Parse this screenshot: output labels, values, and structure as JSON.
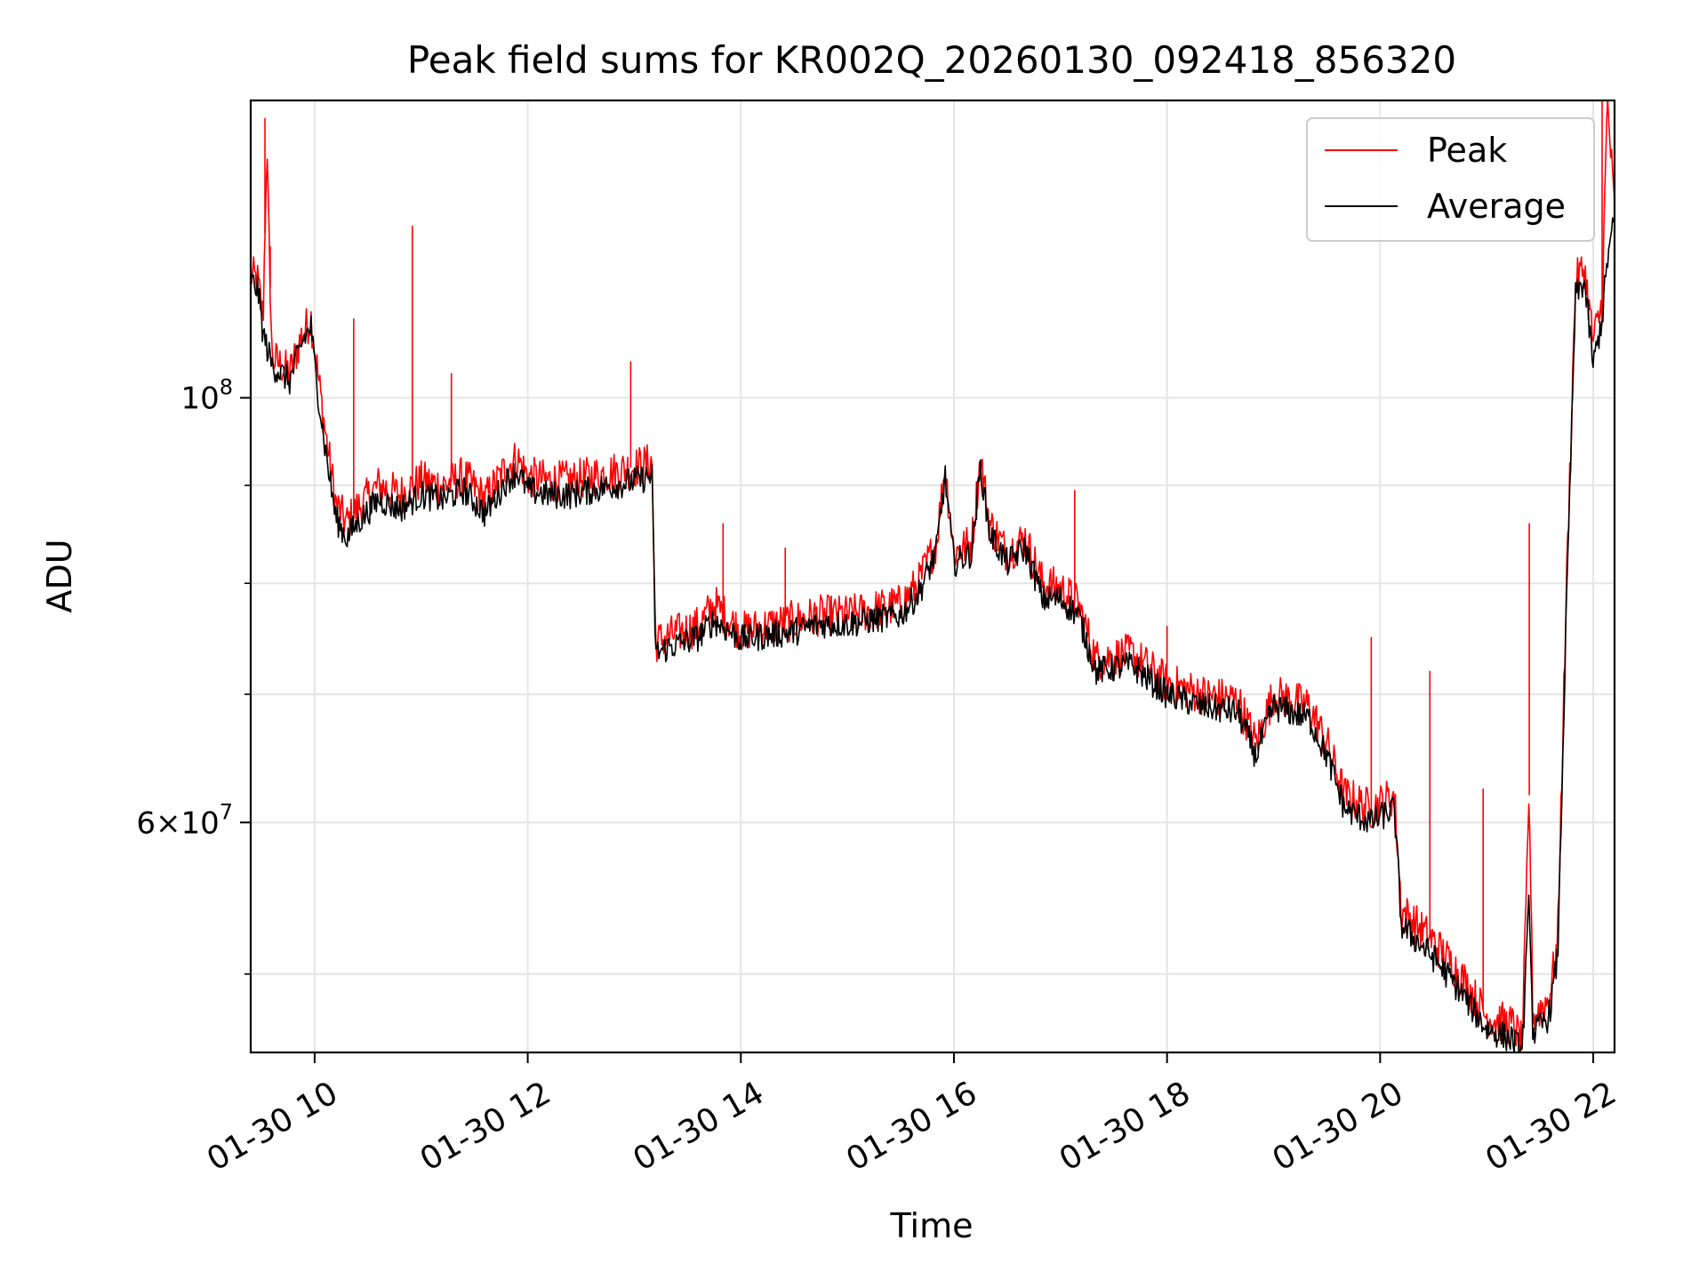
{
  "chart_data": {
    "type": "line",
    "title": "Peak field sums for KR002Q_20260130_092418_856320",
    "xlabel": "Time",
    "ylabel": "ADU",
    "x_unit": "time of day on 01-30 (hours)",
    "xlim": [
      "01-30 09:24",
      "01-30 22:12"
    ],
    "x_ticks": [
      10,
      12,
      14,
      16,
      18,
      20,
      22
    ],
    "x_tick_labels": [
      "01-30 10",
      "01-30 12",
      "01-30 14",
      "01-30 16",
      "01-30 18",
      "01-30 20",
      "01-30 22"
    ],
    "y_scale": "log",
    "ylim": [
      45500000,
      143000000
    ],
    "y_major_ticks": [
      60000000,
      100000000
    ],
    "y_major_tick_labels": [
      {
        "base": "6",
        "mult": "×",
        "pow": "10",
        "exp": "7"
      },
      {
        "base": "",
        "mult": "",
        "pow": "10",
        "exp": "8"
      }
    ],
    "y_minor_ticks": [
      50000000,
      70000000,
      80000000,
      90000000
    ],
    "grid": true,
    "legend_position": "upper right",
    "colors": {
      "peak": "#ff0000",
      "average": "#000000",
      "grid": "#e5e5e5"
    },
    "series": [
      {
        "name": "Peak",
        "x_start": "01-30 09:24",
        "x_end": "01-30 22:12",
        "points": [
          [
            "01-30 09:24",
            116000000
          ],
          [
            "01-30 09:28",
            115000000
          ],
          [
            "01-30 09:31",
            110000000
          ],
          [
            "01-30 09:33",
            135000000
          ],
          [
            "01-30 09:36",
            105000000
          ],
          [
            "01-30 09:41",
            104000000
          ],
          [
            "01-30 09:46",
            103000000
          ],
          [
            "01-30 09:53",
            108000000
          ],
          [
            "01-30 09:58",
            110000000
          ],
          [
            "01-30 10:00",
            106000000
          ],
          [
            "01-30 10:06",
            96000000
          ],
          [
            "01-30 10:12",
            88000000
          ],
          [
            "01-30 10:18",
            86000000
          ],
          [
            "01-30 10:24",
            87500000
          ],
          [
            "01-30 10:36",
            90000000
          ],
          [
            "01-30 10:48",
            89000000
          ],
          [
            "01-30 11:00",
            90500000
          ],
          [
            "01-30 11:12",
            90000000
          ],
          [
            "01-30 11:24",
            91000000
          ],
          [
            "01-30 11:36",
            88500000
          ],
          [
            "01-30 11:48",
            92000000
          ],
          [
            "01-30 11:54",
            93000000
          ],
          [
            "01-30 12:00",
            91000000
          ],
          [
            "01-30 12:12",
            90500000
          ],
          [
            "01-30 12:24",
            90500000
          ],
          [
            "01-30 12:36",
            91000000
          ],
          [
            "01-30 12:48",
            91500000
          ],
          [
            "01-30 13:00",
            92000000
          ],
          [
            "01-30 13:10",
            92500000
          ],
          [
            "01-30 13:12",
            74500000
          ],
          [
            "01-30 13:18",
            75000000
          ],
          [
            "01-30 13:36",
            76000000
          ],
          [
            "01-30 13:45",
            78000000
          ],
          [
            "01-30 14:00",
            75500000
          ],
          [
            "01-30 14:30",
            76500000
          ],
          [
            "01-30 14:45",
            77000000
          ],
          [
            "01-30 15:00",
            77000000
          ],
          [
            "01-30 15:30",
            78000000
          ],
          [
            "01-30 15:40",
            80000000
          ],
          [
            "01-30 15:50",
            84000000
          ],
          [
            "01-30 15:55",
            92000000
          ],
          [
            "01-30 16:00",
            83000000
          ],
          [
            "01-30 16:10",
            84000000
          ],
          [
            "01-30 16:15",
            93000000
          ],
          [
            "01-30 16:20",
            86000000
          ],
          [
            "01-30 16:30",
            83000000
          ],
          [
            "01-30 16:40",
            84500000
          ],
          [
            "01-30 16:50",
            80000000
          ],
          [
            "01-30 17:00",
            79500000
          ],
          [
            "01-30 17:10",
            78000000
          ],
          [
            "01-30 17:20",
            73000000
          ],
          [
            "01-30 17:40",
            73500000
          ],
          [
            "01-30 18:00",
            71000000
          ],
          [
            "01-30 18:20",
            70000000
          ],
          [
            "01-30 18:40",
            69500000
          ],
          [
            "01-30 18:50",
            66000000
          ],
          [
            "01-30 19:00",
            70000000
          ],
          [
            "01-30 19:20",
            69000000
          ],
          [
            "01-30 19:30",
            66000000
          ],
          [
            "01-30 19:40",
            62000000
          ],
          [
            "01-30 19:55",
            61000000
          ],
          [
            "01-30 20:08",
            62000000
          ],
          [
            "01-30 20:12",
            54000000
          ],
          [
            "01-30 20:30",
            52000000
          ],
          [
            "01-30 20:45",
            50000000
          ],
          [
            "01-30 21:00",
            47500000
          ],
          [
            "01-30 21:15",
            47000000
          ],
          [
            "01-30 21:20",
            46000000
          ],
          [
            "01-30 21:24",
            62000000
          ],
          [
            "01-30 21:26",
            47500000
          ],
          [
            "01-30 21:35",
            48500000
          ],
          [
            "01-30 21:40",
            52000000
          ],
          [
            "01-30 21:45",
            80000000
          ],
          [
            "01-30 21:50",
            115000000
          ],
          [
            "01-30 21:55",
            117000000
          ],
          [
            "01-30 22:00",
            107000000
          ],
          [
            "01-30 22:05",
            112000000
          ],
          [
            "01-30 22:08",
            143000000
          ],
          [
            "01-30 22:12",
            125000000
          ]
        ],
        "spikes": [
          [
            "01-30 09:32",
            140000000
          ],
          [
            "01-30 09:35",
            120000000
          ],
          [
            "01-30 10:22",
            110000000
          ],
          [
            "01-30 10:55",
            123000000
          ],
          [
            "01-30 11:17",
            103000000
          ],
          [
            "01-30 12:58",
            104500000
          ],
          [
            "01-30 13:50",
            86000000
          ],
          [
            "01-30 14:25",
            83500000
          ],
          [
            "01-30 17:08",
            89500000
          ],
          [
            "01-30 18:00",
            76000000
          ],
          [
            "01-30 19:55",
            75000000
          ],
          [
            "01-30 20:28",
            72000000
          ],
          [
            "01-30 20:58",
            62500000
          ],
          [
            "01-30 21:24",
            86000000
          ],
          [
            "01-30 22:05",
            143000000
          ]
        ]
      },
      {
        "name": "Average",
        "x_start": "01-30 09:24",
        "x_end": "01-30 22:12",
        "points": [
          [
            "01-30 09:24",
            115000000
          ],
          [
            "01-30 09:28",
            114000000
          ],
          [
            "01-30 09:31",
            108000000
          ],
          [
            "01-30 09:36",
            104000000
          ],
          [
            "01-30 09:41",
            103000000
          ],
          [
            "01-30 09:46",
            102000000
          ],
          [
            "01-30 09:53",
            107000000
          ],
          [
            "01-30 09:58",
            109000000
          ],
          [
            "01-30 10:00",
            104000000
          ],
          [
            "01-30 10:06",
            94000000
          ],
          [
            "01-30 10:12",
            86500000
          ],
          [
            "01-30 10:18",
            84500000
          ],
          [
            "01-30 10:24",
            86000000
          ],
          [
            "01-30 10:36",
            88500000
          ],
          [
            "01-30 10:48",
            87500000
          ],
          [
            "01-30 11:00",
            89000000
          ],
          [
            "01-30 11:12",
            88500000
          ],
          [
            "01-30 11:24",
            89500000
          ],
          [
            "01-30 11:36",
            87000000
          ],
          [
            "01-30 11:48",
            90500000
          ],
          [
            "01-30 11:54",
            91500000
          ],
          [
            "01-30 12:00",
            89500000
          ],
          [
            "01-30 12:12",
            89000000
          ],
          [
            "01-30 12:24",
            89000000
          ],
          [
            "01-30 12:36",
            89500000
          ],
          [
            "01-30 12:48",
            90000000
          ],
          [
            "01-30 13:00",
            90500000
          ],
          [
            "01-30 13:10",
            91000000
          ],
          [
            "01-30 13:12",
            73500000
          ],
          [
            "01-30 13:18",
            74000000
          ],
          [
            "01-30 13:36",
            75000000
          ],
          [
            "01-30 13:45",
            76500000
          ],
          [
            "01-30 14:00",
            74800000
          ],
          [
            "01-30 14:30",
            75500000
          ],
          [
            "01-30 14:45",
            76200000
          ],
          [
            "01-30 15:00",
            76200000
          ],
          [
            "01-30 15:30",
            77000000
          ],
          [
            "01-30 15:40",
            79000000
          ],
          [
            "01-30 15:50",
            83000000
          ],
          [
            "01-30 15:55",
            91000000
          ],
          [
            "01-30 16:00",
            82000000
          ],
          [
            "01-30 16:10",
            83000000
          ],
          [
            "01-30 16:15",
            92000000
          ],
          [
            "01-30 16:20",
            85000000
          ],
          [
            "01-30 16:30",
            82000000
          ],
          [
            "01-30 16:40",
            83500000
          ],
          [
            "01-30 16:50",
            78500000
          ],
          [
            "01-30 17:00",
            78500000
          ],
          [
            "01-30 17:10",
            77000000
          ],
          [
            "01-30 17:20",
            72000000
          ],
          [
            "01-30 17:40",
            72500000
          ],
          [
            "01-30 18:00",
            70000000
          ],
          [
            "01-30 18:20",
            69000000
          ],
          [
            "01-30 18:40",
            68500000
          ],
          [
            "01-30 18:50",
            65000000
          ],
          [
            "01-30 19:00",
            69000000
          ],
          [
            "01-30 19:20",
            68000000
          ],
          [
            "01-30 19:30",
            65000000
          ],
          [
            "01-30 19:40",
            61000000
          ],
          [
            "01-30 19:55",
            60000000
          ],
          [
            "01-30 20:08",
            61000000
          ],
          [
            "01-30 20:12",
            53000000
          ],
          [
            "01-30 20:30",
            51000000
          ],
          [
            "01-30 20:45",
            49000000
          ],
          [
            "01-30 21:00",
            46800000
          ],
          [
            "01-30 21:15",
            46200000
          ],
          [
            "01-30 21:20",
            45500000
          ],
          [
            "01-30 21:24",
            55000000
          ],
          [
            "01-30 21:26",
            46500000
          ],
          [
            "01-30 21:35",
            47500000
          ],
          [
            "01-30 21:40",
            51000000
          ],
          [
            "01-30 21:45",
            78000000
          ],
          [
            "01-30 21:50",
            113000000
          ],
          [
            "01-30 21:55",
            115000000
          ],
          [
            "01-30 22:00",
            104000000
          ],
          [
            "01-30 22:05",
            110000000
          ],
          [
            "01-30 22:08",
            118000000
          ],
          [
            "01-30 22:12",
            124000000
          ]
        ]
      }
    ]
  }
}
